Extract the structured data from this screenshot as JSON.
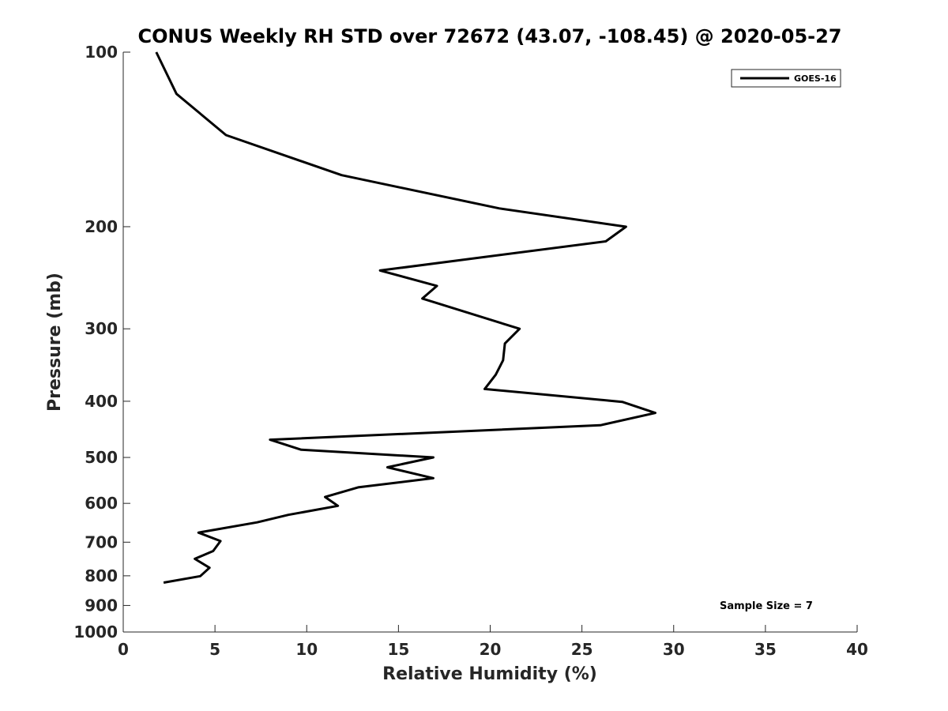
{
  "chart_data": {
    "type": "line",
    "title": "CONUS Weekly RH STD over 72672 (43.07, -108.45) @ 2020-05-27",
    "xlabel": "Relative Humidity (%)",
    "ylabel": "Pressure (mb)",
    "xlim": [
      0,
      40
    ],
    "ylim": [
      100,
      1000
    ],
    "y_scale": "log",
    "y_reversed": true,
    "xticks": [
      0,
      5,
      10,
      15,
      20,
      25,
      30,
      35,
      40
    ],
    "yticks": [
      100,
      200,
      300,
      400,
      500,
      600,
      700,
      800,
      900,
      1000
    ],
    "grid": false,
    "legend_position": "top-right",
    "series": [
      {
        "name": "GOES-16",
        "color": "#000000",
        "points": [
          [
            1.8,
            100
          ],
          [
            2.9,
            118
          ],
          [
            5.6,
            139
          ],
          [
            11.9,
            163
          ],
          [
            20.5,
            186
          ],
          [
            27.4,
            200
          ],
          [
            26.3,
            212
          ],
          [
            14.0,
            238
          ],
          [
            17.1,
            253
          ],
          [
            16.3,
            266
          ],
          [
            21.6,
            300
          ],
          [
            20.8,
            318
          ],
          [
            20.7,
            340
          ],
          [
            20.3,
            360
          ],
          [
            19.7,
            381
          ],
          [
            27.2,
            401
          ],
          [
            29.0,
            419
          ],
          [
            26.0,
            440
          ],
          [
            8.0,
            466
          ],
          [
            9.7,
            485
          ],
          [
            16.9,
            500
          ],
          [
            14.4,
            520
          ],
          [
            16.9,
            543
          ],
          [
            12.8,
            563
          ],
          [
            11.0,
            585
          ],
          [
            11.7,
            606
          ],
          [
            9.0,
            628
          ],
          [
            7.3,
            647
          ],
          [
            4.1,
            674
          ],
          [
            5.3,
            697
          ],
          [
            4.9,
            725
          ],
          [
            3.9,
            748
          ],
          [
            4.7,
            775
          ],
          [
            4.2,
            801
          ],
          [
            2.2,
            822
          ]
        ]
      }
    ],
    "legend_entries": [
      "GOES-16"
    ],
    "annotation": "Sample Size = 7"
  }
}
